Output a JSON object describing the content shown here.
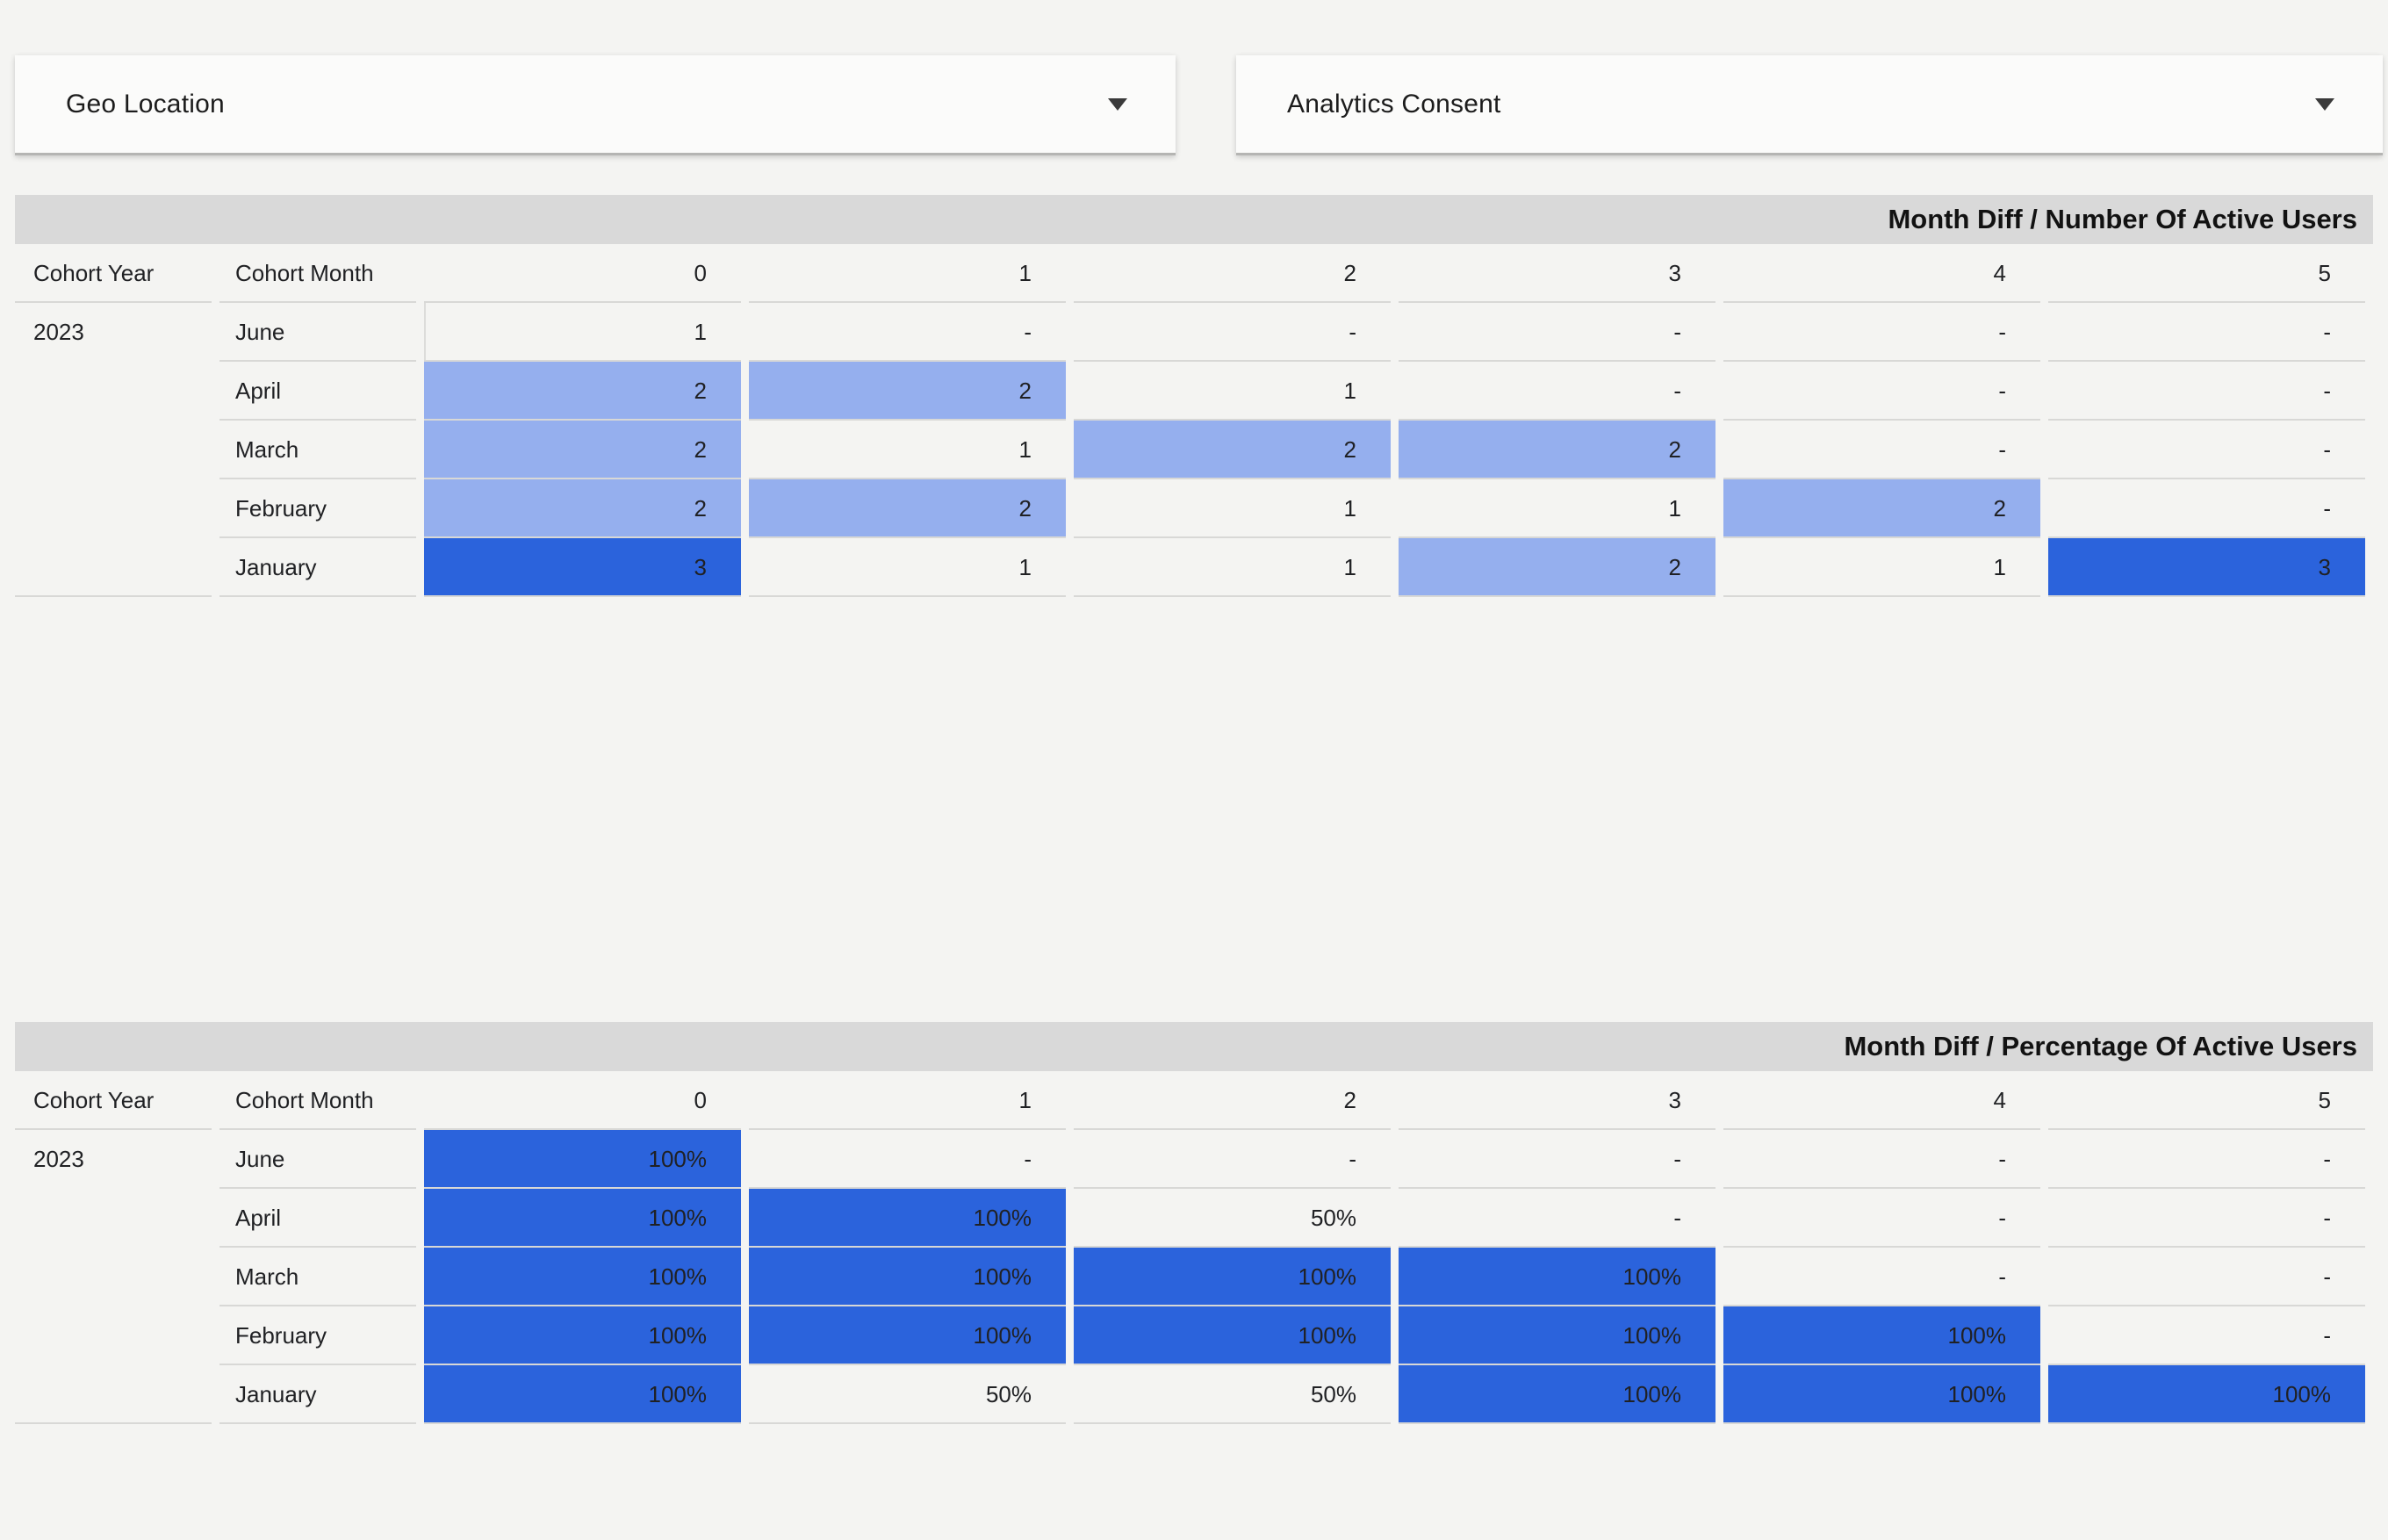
{
  "filters": [
    {
      "label": "Geo Location"
    },
    {
      "label": "Analytics Consent"
    }
  ],
  "colors": {
    "heat_strong": "#2b63dc",
    "heat_light": "#95afee",
    "title_band": "#d9d9d9",
    "page_bg": "#f4f4f2"
  },
  "tables": [
    {
      "title": "Month Diff / Number Of Active Users",
      "columns": [
        "Cohort Year",
        "Cohort Month",
        "0",
        "1",
        "2",
        "3",
        "4",
        "5"
      ],
      "year": "2023",
      "rows": [
        {
          "month": "June",
          "cells": [
            {
              "v": "1",
              "f": ""
            },
            {
              "v": "-",
              "f": ""
            },
            {
              "v": "-",
              "f": ""
            },
            {
              "v": "-",
              "f": ""
            },
            {
              "v": "-",
              "f": ""
            },
            {
              "v": "-",
              "f": ""
            }
          ]
        },
        {
          "month": "April",
          "cells": [
            {
              "v": "2",
              "f": "l"
            },
            {
              "v": "2",
              "f": "l"
            },
            {
              "v": "1",
              "f": ""
            },
            {
              "v": "-",
              "f": ""
            },
            {
              "v": "-",
              "f": ""
            },
            {
              "v": "-",
              "f": ""
            }
          ]
        },
        {
          "month": "March",
          "cells": [
            {
              "v": "2",
              "f": "l"
            },
            {
              "v": "1",
              "f": ""
            },
            {
              "v": "2",
              "f": "l"
            },
            {
              "v": "2",
              "f": "l"
            },
            {
              "v": "-",
              "f": ""
            },
            {
              "v": "-",
              "f": ""
            }
          ]
        },
        {
          "month": "February",
          "cells": [
            {
              "v": "2",
              "f": "l"
            },
            {
              "v": "2",
              "f": "l"
            },
            {
              "v": "1",
              "f": ""
            },
            {
              "v": "1",
              "f": ""
            },
            {
              "v": "2",
              "f": "l"
            },
            {
              "v": "-",
              "f": ""
            }
          ]
        },
        {
          "month": "January",
          "cells": [
            {
              "v": "3",
              "f": "s"
            },
            {
              "v": "1",
              "f": ""
            },
            {
              "v": "1",
              "f": ""
            },
            {
              "v": "2",
              "f": "l"
            },
            {
              "v": "1",
              "f": ""
            },
            {
              "v": "3",
              "f": "s"
            }
          ]
        }
      ]
    },
    {
      "title": "Month Diff / Percentage Of Active Users",
      "columns": [
        "Cohort Year",
        "Cohort Month",
        "0",
        "1",
        "2",
        "3",
        "4",
        "5"
      ],
      "year": "2023",
      "rows": [
        {
          "month": "June",
          "cells": [
            {
              "v": "100%",
              "f": "s"
            },
            {
              "v": "-",
              "f": ""
            },
            {
              "v": "-",
              "f": ""
            },
            {
              "v": "-",
              "f": ""
            },
            {
              "v": "-",
              "f": ""
            },
            {
              "v": "-",
              "f": ""
            }
          ]
        },
        {
          "month": "April",
          "cells": [
            {
              "v": "100%",
              "f": "s"
            },
            {
              "v": "100%",
              "f": "s"
            },
            {
              "v": "50%",
              "f": ""
            },
            {
              "v": "-",
              "f": ""
            },
            {
              "v": "-",
              "f": ""
            },
            {
              "v": "-",
              "f": ""
            }
          ]
        },
        {
          "month": "March",
          "cells": [
            {
              "v": "100%",
              "f": "s"
            },
            {
              "v": "100%",
              "f": "s"
            },
            {
              "v": "100%",
              "f": "s"
            },
            {
              "v": "100%",
              "f": "s"
            },
            {
              "v": "-",
              "f": ""
            },
            {
              "v": "-",
              "f": ""
            }
          ]
        },
        {
          "month": "February",
          "cells": [
            {
              "v": "100%",
              "f": "s"
            },
            {
              "v": "100%",
              "f": "s"
            },
            {
              "v": "100%",
              "f": "s"
            },
            {
              "v": "100%",
              "f": "s"
            },
            {
              "v": "100%",
              "f": "s"
            },
            {
              "v": "-",
              "f": ""
            }
          ]
        },
        {
          "month": "January",
          "cells": [
            {
              "v": "100%",
              "f": "s"
            },
            {
              "v": "50%",
              "f": ""
            },
            {
              "v": "50%",
              "f": ""
            },
            {
              "v": "100%",
              "f": "s"
            },
            {
              "v": "100%",
              "f": "s"
            },
            {
              "v": "100%",
              "f": "s"
            }
          ]
        }
      ]
    }
  ],
  "chart_data": [
    {
      "type": "heatmap",
      "title": "Month Diff / Number Of Active Users",
      "cohort_year": 2023,
      "row_labels": [
        "June",
        "April",
        "March",
        "February",
        "January"
      ],
      "columns": [
        0,
        1,
        2,
        3,
        4,
        5
      ],
      "values": [
        [
          1,
          null,
          null,
          null,
          null,
          null
        ],
        [
          2,
          2,
          1,
          null,
          null,
          null
        ],
        [
          2,
          1,
          2,
          2,
          null,
          null
        ],
        [
          2,
          2,
          1,
          1,
          2,
          null
        ],
        [
          3,
          1,
          1,
          2,
          1,
          3
        ]
      ]
    },
    {
      "type": "heatmap",
      "title": "Month Diff / Percentage Of Active Users",
      "cohort_year": 2023,
      "row_labels": [
        "June",
        "April",
        "March",
        "February",
        "January"
      ],
      "columns": [
        0,
        1,
        2,
        3,
        4,
        5
      ],
      "unit": "%",
      "values": [
        [
          100,
          null,
          null,
          null,
          null,
          null
        ],
        [
          100,
          100,
          50,
          null,
          null,
          null
        ],
        [
          100,
          100,
          100,
          100,
          null,
          null
        ],
        [
          100,
          100,
          100,
          100,
          100,
          null
        ],
        [
          100,
          50,
          50,
          100,
          100,
          100
        ]
      ]
    }
  ]
}
